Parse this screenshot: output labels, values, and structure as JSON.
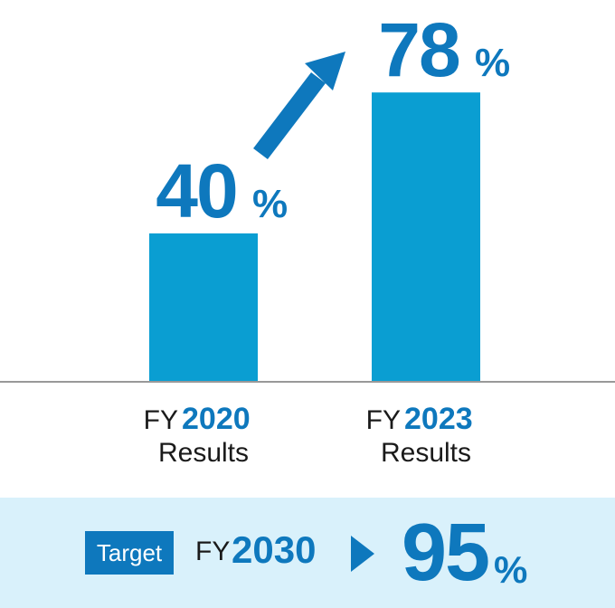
{
  "colors": {
    "bar": "#0a9ed2",
    "accent": "#0e78bd",
    "axis": "#999999",
    "band": "#d9f1fb"
  },
  "chart_data": {
    "type": "bar",
    "categories": [
      "FY 2020 Results",
      "FY 2023 Results"
    ],
    "category_parts": [
      {
        "prefix": "FY",
        "year": "2020",
        "sub": "Results"
      },
      {
        "prefix": "FY",
        "year": "2023",
        "sub": "Results"
      }
    ],
    "values": [
      40,
      78
    ],
    "value_labels": [
      "40",
      "78"
    ],
    "unit": "%",
    "ylim": [
      0,
      100
    ],
    "trend_arrow": true,
    "grid": false,
    "title": "",
    "xlabel": "",
    "ylabel": ""
  },
  "target": {
    "badge": "Target",
    "fy_prefix": "FY",
    "year": "2030",
    "value": "95",
    "unit": "%"
  }
}
